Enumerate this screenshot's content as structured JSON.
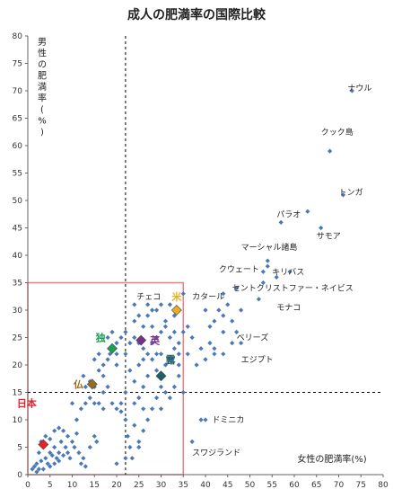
{
  "chart_data": {
    "type": "scatter",
    "title": "成人の肥満率の国際比較",
    "xlabel": "女性の肥満率(%)",
    "ylabel_lines": [
      "男",
      "性",
      "の",
      "肥",
      "満",
      "率",
      "(",
      "%",
      ")"
    ],
    "xlim": [
      0,
      80
    ],
    "ylim": [
      0,
      80
    ],
    "xticks": [
      0,
      5,
      10,
      15,
      20,
      25,
      30,
      35,
      40,
      45,
      50,
      55,
      60,
      65,
      70,
      75,
      80
    ],
    "yticks": [
      0,
      5,
      10,
      15,
      20,
      25,
      30,
      35,
      40,
      45,
      50,
      55,
      60,
      65,
      70,
      75,
      80
    ],
    "grid": false,
    "reference_lines": {
      "x": 22,
      "y": 15
    },
    "highlight_box": {
      "x": [
        0,
        35
      ],
      "y": [
        0,
        35
      ]
    },
    "colors": {
      "points": "#4a78b8",
      "reference_line": "#000000",
      "box": "#f08080"
    },
    "points": [
      [
        1,
        1
      ],
      [
        1.5,
        1.5
      ],
      [
        2,
        0.5
      ],
      [
        2,
        2
      ],
      [
        2.5,
        1
      ],
      [
        3,
        2.5
      ],
      [
        3.5,
        1
      ],
      [
        4,
        3
      ],
      [
        4.5,
        2
      ],
      [
        5,
        1.5
      ],
      [
        5,
        4
      ],
      [
        5.5,
        3.5
      ],
      [
        6,
        2
      ],
      [
        6,
        5
      ],
      [
        6.5,
        3
      ],
      [
        7,
        4
      ],
      [
        7,
        2.5
      ],
      [
        7.5,
        6
      ],
      [
        8,
        3.5
      ],
      [
        8,
        8
      ],
      [
        8.5,
        5
      ],
      [
        9,
        4
      ],
      [
        9,
        7
      ],
      [
        9.5,
        3
      ],
      [
        10,
        6
      ],
      [
        10.5,
        5
      ],
      [
        11,
        7.5
      ],
      [
        11.5,
        4
      ],
      [
        12,
        2
      ],
      [
        12.5,
        3
      ],
      [
        13,
        1.5
      ],
      [
        14,
        5
      ],
      [
        15,
        7
      ],
      [
        15.5,
        6
      ],
      [
        6,
        8
      ],
      [
        7,
        8.5
      ],
      [
        4,
        7
      ],
      [
        3,
        6
      ],
      [
        5,
        6.5
      ],
      [
        2.5,
        4
      ],
      [
        12,
        12
      ],
      [
        13,
        13
      ],
      [
        14,
        14
      ],
      [
        12.5,
        18
      ],
      [
        13,
        16
      ],
      [
        14,
        17
      ],
      [
        15,
        16
      ],
      [
        16,
        19
      ],
      [
        17,
        18
      ],
      [
        17,
        20
      ],
      [
        18,
        21
      ],
      [
        18.5,
        22
      ],
      [
        19,
        23
      ],
      [
        20,
        20
      ],
      [
        20,
        22
      ],
      [
        21,
        25
      ],
      [
        22,
        26
      ],
      [
        23,
        24
      ],
      [
        24,
        25
      ],
      [
        25,
        24
      ],
      [
        26,
        23
      ],
      [
        22,
        22
      ],
      [
        20,
        24
      ],
      [
        19,
        26
      ],
      [
        18,
        25
      ],
      [
        16,
        22
      ],
      [
        15,
        21
      ],
      [
        16,
        13
      ],
      [
        17,
        15
      ],
      [
        18,
        16
      ],
      [
        19,
        13
      ],
      [
        20,
        12
      ],
      [
        21,
        11.5
      ],
      [
        22,
        10
      ],
      [
        22.5,
        7
      ],
      [
        23,
        5
      ],
      [
        23.5,
        3
      ],
      [
        22,
        3
      ],
      [
        20,
        2
      ],
      [
        24,
        9
      ],
      [
        25,
        6
      ],
      [
        26,
        8
      ],
      [
        27,
        10
      ],
      [
        28,
        12
      ],
      [
        29,
        14
      ],
      [
        30,
        16
      ],
      [
        31,
        15
      ],
      [
        32,
        14
      ],
      [
        33,
        16
      ],
      [
        34,
        18
      ],
      [
        25,
        20
      ],
      [
        26,
        21
      ],
      [
        27,
        22
      ],
      [
        28,
        24
      ],
      [
        29,
        25
      ],
      [
        30,
        26
      ],
      [
        31,
        27
      ],
      [
        32,
        25
      ],
      [
        33,
        23
      ],
      [
        34,
        22
      ],
      [
        26,
        27
      ],
      [
        27,
        29
      ],
      [
        28,
        30
      ],
      [
        24,
        28
      ],
      [
        24,
        31
      ],
      [
        30,
        31
      ],
      [
        31,
        28
      ],
      [
        33,
        26
      ],
      [
        32,
        21
      ],
      [
        29,
        19
      ],
      [
        27,
        18
      ],
      [
        26,
        16
      ],
      [
        25,
        14
      ],
      [
        24,
        17
      ],
      [
        23,
        19
      ],
      [
        28,
        21
      ],
      [
        31,
        20
      ],
      [
        30,
        22
      ],
      [
        34,
        24
      ],
      [
        35,
        26
      ],
      [
        27,
        31
      ],
      [
        25,
        29
      ],
      [
        36,
        22
      ],
      [
        37,
        25
      ],
      [
        38,
        20
      ],
      [
        39,
        23
      ],
      [
        40,
        21
      ],
      [
        41,
        27
      ],
      [
        42,
        23
      ],
      [
        44,
        26
      ],
      [
        43,
        30
      ],
      [
        44,
        29
      ],
      [
        46,
        24
      ],
      [
        47,
        26
      ],
      [
        48,
        24
      ],
      [
        44,
        22
      ],
      [
        40,
        30
      ],
      [
        42,
        22
      ],
      [
        39,
        10
      ],
      [
        40,
        10
      ],
      [
        37,
        6
      ],
      [
        35,
        33
      ],
      [
        33,
        29
      ],
      [
        32,
        31
      ],
      [
        29,
        30
      ],
      [
        28,
        27
      ],
      [
        30,
        12
      ],
      [
        26,
        12
      ],
      [
        24,
        13
      ],
      [
        22,
        15
      ],
      [
        21,
        13
      ],
      [
        17,
        12
      ],
      [
        15,
        13
      ],
      [
        10,
        13
      ],
      [
        11,
        10
      ],
      [
        25,
        5
      ],
      [
        35,
        15
      ],
      [
        34,
        20
      ],
      [
        36,
        27
      ],
      [
        29,
        22
      ],
      [
        52,
        32
      ],
      [
        53,
        37
      ],
      [
        54,
        38
      ],
      [
        54,
        39
      ],
      [
        53,
        35
      ],
      [
        56,
        36
      ],
      [
        57,
        46
      ],
      [
        59,
        37
      ],
      [
        63,
        48
      ],
      [
        66,
        45
      ],
      [
        68,
        59
      ],
      [
        71,
        51
      ],
      [
        73,
        70
      ],
      [
        44,
        33
      ],
      [
        45,
        31
      ],
      [
        47,
        34
      ],
      [
        46,
        28
      ],
      [
        48,
        30
      ],
      [
        42,
        28
      ],
      [
        41,
        24
      ]
    ],
    "highlights": [
      {
        "label": "日本",
        "x": 3.5,
        "y": 5.5,
        "color": "#e8202a",
        "label_dx": -1.5,
        "label_dy": 7.5
      },
      {
        "label": "仏",
        "x": 14.5,
        "y": 16.5,
        "color": "#9a6a1e",
        "label_dx": -2,
        "label_dy": 0
      },
      {
        "label": "独",
        "x": 19,
        "y": 23,
        "color": "#18a050",
        "label_dx": -1.5,
        "label_dy": 2
      },
      {
        "label": "英",
        "x": 25.5,
        "y": 24.5,
        "color": "#7b2e8c",
        "label_dx": 2,
        "label_dy": 0
      },
      {
        "label": "露",
        "x": 30,
        "y": 18,
        "color": "#1f5f6a",
        "label_dx": 1,
        "label_dy": 3
      },
      {
        "label": "米",
        "x": 33.5,
        "y": 30,
        "color": "#e8b020",
        "label_dx": 0,
        "label_dy": 2.5
      }
    ],
    "annotations": [
      {
        "text": "ナウル",
        "x": 72,
        "y": 70
      },
      {
        "text": "クック島",
        "x": 66,
        "y": 62
      },
      {
        "text": "トンガ",
        "x": 70,
        "y": 51
      },
      {
        "text": "パラオ",
        "x": 56,
        "y": 47
      },
      {
        "text": "サモア",
        "x": 65,
        "y": 43
      },
      {
        "text": "マーシャル諸島",
        "x": 48,
        "y": 41
      },
      {
        "text": "クウェート",
        "x": 43,
        "y": 37
      },
      {
        "text": "キリバス",
        "x": 55,
        "y": 36.5
      },
      {
        "text": "セントクリストファー・ネイビス",
        "x": 46,
        "y": 33.5
      },
      {
        "text": "チェコ",
        "x": 24.5,
        "y": 32
      },
      {
        "text": "カタール",
        "x": 37,
        "y": 32
      },
      {
        "text": "モナコ",
        "x": 56,
        "y": 30
      },
      {
        "text": "ベリーズ",
        "x": 47,
        "y": 24.5
      },
      {
        "text": "エジプト",
        "x": 48,
        "y": 20.5
      },
      {
        "text": "ドミニカ",
        "x": 41.5,
        "y": 9.5
      },
      {
        "text": "スワジランド",
        "x": 37,
        "y": 3.5
      }
    ]
  }
}
